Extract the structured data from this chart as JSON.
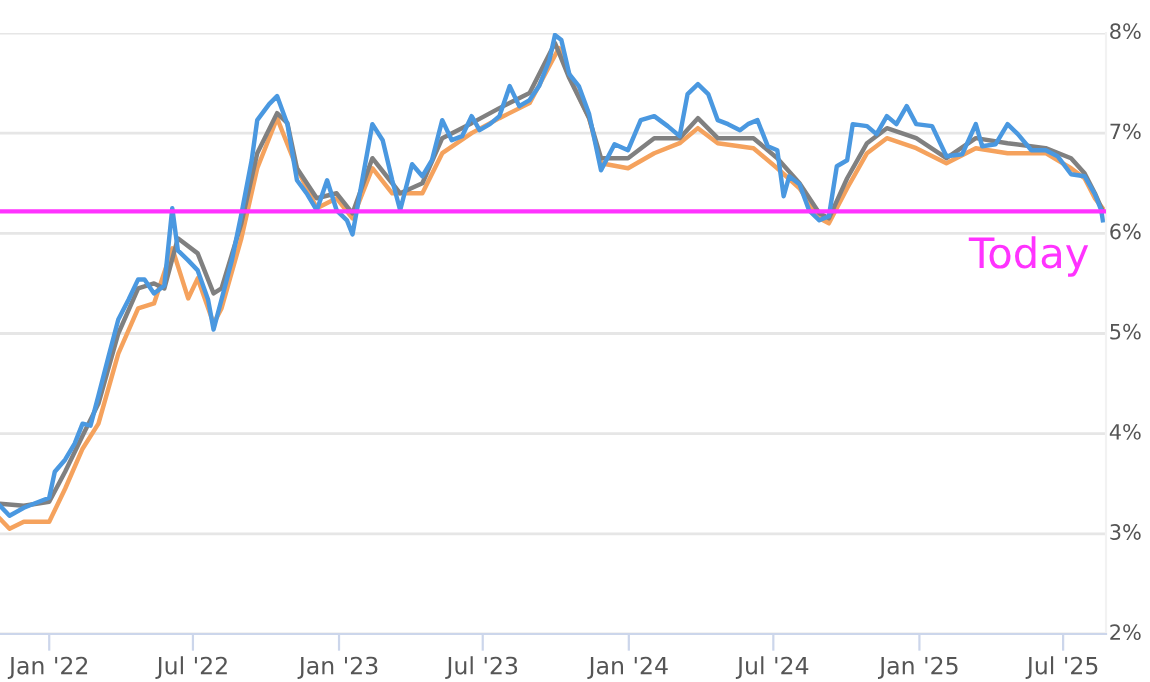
{
  "chart_data": {
    "type": "line",
    "xlim": [
      "2021-10-31",
      "2025-08-24"
    ],
    "xticks": [
      {
        "value": "2022-01-01",
        "label": "Jan '22"
      },
      {
        "value": "2022-07-01",
        "label": "Jul '22"
      },
      {
        "value": "2023-01-01",
        "label": "Jan '23"
      },
      {
        "value": "2023-07-01",
        "label": "Jul '23"
      },
      {
        "value": "2024-01-01",
        "label": "Jan '24"
      },
      {
        "value": "2024-07-01",
        "label": "Jul '24"
      },
      {
        "value": "2025-01-01",
        "label": "Jan '25"
      },
      {
        "value": "2025-07-01",
        "label": "Jul '25"
      }
    ],
    "ylim": [
      2,
      8
    ],
    "yticks": [
      {
        "value": 2,
        "label": "2%"
      },
      {
        "value": 3,
        "label": "3%"
      },
      {
        "value": 4,
        "label": "4%"
      },
      {
        "value": 5,
        "label": "5%"
      },
      {
        "value": 6,
        "label": "6%"
      },
      {
        "value": 7,
        "label": "7%"
      },
      {
        "value": 8,
        "label": "8%"
      }
    ],
    "grid": "y",
    "legend": false,
    "marker": "none",
    "line_style": "solid",
    "ref_lines": [
      {
        "axis": "y",
        "value": 6.22,
        "label": "Today",
        "color": "#ff33ff"
      }
    ],
    "series": [
      {
        "color": "#f5a25d",
        "x": [
          "2021-10-31",
          "2021-11-12",
          "2021-11-30",
          "2022-01-01",
          "2022-01-21",
          "2022-02-12",
          "2022-03-04",
          "2022-03-29",
          "2022-04-23",
          "2022-05-13",
          "2022-06-05",
          "2022-06-25",
          "2022-07-07",
          "2022-07-27",
          "2022-08-06",
          "2022-08-31",
          "2022-09-20",
          "2022-10-15",
          "2022-11-09",
          "2022-12-04",
          "2022-12-29",
          "2023-01-18",
          "2023-02-12",
          "2023-03-09",
          "2023-03-27",
          "2023-04-16",
          "2023-05-11",
          "2023-06-17",
          "2023-07-22",
          "2023-08-29",
          "2023-10-05",
          "2023-10-25",
          "2023-11-12",
          "2023-11-27",
          "2023-12-31",
          "2024-02-02",
          "2024-03-05",
          "2024-03-28",
          "2024-04-22",
          "2024-06-06",
          "2024-07-06",
          "2024-08-03",
          "2024-08-28",
          "2024-09-09",
          "2024-10-02",
          "2024-10-27",
          "2024-11-21",
          "2024-12-28",
          "2025-02-04",
          "2025-03-13",
          "2025-04-22",
          "2025-06-09",
          "2025-07-11",
          "2025-07-28",
          "2025-08-10",
          "2025-08-20"
        ],
        "values": [
          3.15,
          3.05,
          3.12,
          3.12,
          3.45,
          3.85,
          4.1,
          4.8,
          5.25,
          5.3,
          5.85,
          5.35,
          5.55,
          5.1,
          5.25,
          5.95,
          6.65,
          7.15,
          6.65,
          6.25,
          6.35,
          6.15,
          6.65,
          6.4,
          6.4,
          6.4,
          6.8,
          7.0,
          7.15,
          7.3,
          7.85,
          7.45,
          7.15,
          6.7,
          6.65,
          6.8,
          6.9,
          7.05,
          6.9,
          6.85,
          6.65,
          6.45,
          6.15,
          6.1,
          6.45,
          6.8,
          6.95,
          6.85,
          6.7,
          6.85,
          6.8,
          6.8,
          6.65,
          6.55,
          6.35,
          6.25
        ]
      },
      {
        "color": "#808080",
        "x": [
          "2021-10-31",
          "2021-11-30",
          "2022-01-01",
          "2022-01-21",
          "2022-02-12",
          "2022-03-04",
          "2022-03-29",
          "2022-04-23",
          "2022-05-13",
          "2022-05-26",
          "2022-06-12",
          "2022-07-07",
          "2022-07-27",
          "2022-08-06",
          "2022-08-31",
          "2022-09-20",
          "2022-10-15",
          "2022-10-28",
          "2022-11-09",
          "2022-12-04",
          "2022-12-29",
          "2023-01-18",
          "2023-02-12",
          "2023-03-09",
          "2023-03-19",
          "2023-04-16",
          "2023-05-11",
          "2023-06-17",
          "2023-07-22",
          "2023-08-29",
          "2023-09-30",
          "2023-10-18",
          "2023-11-12",
          "2023-11-27",
          "2023-12-31",
          "2024-02-02",
          "2024-03-05",
          "2024-03-28",
          "2024-04-22",
          "2024-06-06",
          "2024-07-06",
          "2024-08-03",
          "2024-08-28",
          "2024-09-09",
          "2024-10-02",
          "2024-10-27",
          "2024-11-21",
          "2024-12-28",
          "2025-02-04",
          "2025-03-13",
          "2025-04-22",
          "2025-06-09",
          "2025-07-11",
          "2025-07-28",
          "2025-08-10",
          "2025-08-20"
        ],
        "values": [
          3.3,
          3.28,
          3.32,
          3.62,
          3.98,
          4.3,
          5.0,
          5.45,
          5.5,
          5.45,
          5.95,
          5.8,
          5.4,
          5.45,
          6.1,
          6.8,
          7.2,
          7.1,
          6.65,
          6.35,
          6.4,
          6.2,
          6.75,
          6.5,
          6.4,
          6.5,
          6.95,
          7.1,
          7.25,
          7.4,
          7.9,
          7.55,
          7.15,
          6.75,
          6.75,
          6.95,
          6.95,
          7.15,
          6.95,
          6.95,
          6.75,
          6.5,
          6.2,
          6.15,
          6.55,
          6.9,
          7.05,
          6.95,
          6.75,
          6.95,
          6.9,
          6.85,
          6.75,
          6.6,
          6.4,
          6.22
        ]
      },
      {
        "color": "#4a98e0",
        "x": [
          "2021-10-31",
          "2021-11-12",
          "2021-11-30",
          "2021-12-19",
          "2022-01-01",
          "2022-01-08",
          "2022-01-21",
          "2022-02-02",
          "2022-02-12",
          "2022-02-22",
          "2022-03-04",
          "2022-03-17",
          "2022-03-29",
          "2022-04-11",
          "2022-04-23",
          "2022-05-01",
          "2022-05-13",
          "2022-05-26",
          "2022-06-05",
          "2022-06-12",
          "2022-06-25",
          "2022-07-07",
          "2022-07-20",
          "2022-07-27",
          "2022-08-06",
          "2022-08-19",
          "2022-08-31",
          "2022-09-13",
          "2022-09-20",
          "2022-10-05",
          "2022-10-15",
          "2022-10-28",
          "2022-11-09",
          "2022-11-22",
          "2022-12-04",
          "2022-12-17",
          "2022-12-29",
          "2023-01-11",
          "2023-01-18",
          "2023-01-28",
          "2023-02-12",
          "2023-02-25",
          "2023-03-09",
          "2023-03-19",
          "2023-04-03",
          "2023-04-16",
          "2023-04-28",
          "2023-05-11",
          "2023-05-23",
          "2023-06-05",
          "2023-06-17",
          "2023-06-27",
          "2023-07-10",
          "2023-07-22",
          "2023-08-04",
          "2023-08-16",
          "2023-08-29",
          "2023-09-10",
          "2023-09-23",
          "2023-09-30",
          "2023-10-08",
          "2023-10-18",
          "2023-10-30",
          "2023-11-12",
          "2023-11-27",
          "2023-12-14",
          "2023-12-31",
          "2024-01-16",
          "2024-02-02",
          "2024-02-19",
          "2024-03-05",
          "2024-03-15",
          "2024-03-28",
          "2024-04-10",
          "2024-04-22",
          "2024-05-05",
          "2024-05-20",
          "2024-05-30",
          "2024-06-11",
          "2024-06-24",
          "2024-07-06",
          "2024-07-14",
          "2024-07-21",
          "2024-08-03",
          "2024-08-15",
          "2024-08-28",
          "2024-09-09",
          "2024-09-19",
          "2024-10-02",
          "2024-10-09",
          "2024-10-27",
          "2024-11-08",
          "2024-11-21",
          "2024-12-03",
          "2024-12-16",
          "2024-12-28",
          "2025-01-17",
          "2025-02-04",
          "2025-02-24",
          "2025-03-13",
          "2025-03-21",
          "2025-04-07",
          "2025-04-22",
          "2025-05-05",
          "2025-05-22",
          "2025-06-09",
          "2025-06-24",
          "2025-07-11",
          "2025-07-28",
          "2025-08-10",
          "2025-08-18",
          "2025-08-20"
        ],
        "values": [
          3.28,
          3.18,
          3.26,
          3.32,
          3.36,
          3.62,
          3.74,
          3.9,
          4.1,
          4.08,
          4.38,
          4.78,
          5.14,
          5.34,
          5.54,
          5.54,
          5.4,
          5.48,
          6.25,
          5.83,
          5.73,
          5.63,
          5.34,
          5.04,
          5.34,
          5.73,
          6.19,
          6.73,
          7.13,
          7.29,
          7.37,
          7.09,
          6.53,
          6.39,
          6.23,
          6.53,
          6.23,
          6.13,
          5.99,
          6.43,
          7.09,
          6.93,
          6.53,
          6.23,
          6.69,
          6.57,
          6.73,
          7.13,
          6.93,
          6.97,
          7.17,
          7.03,
          7.09,
          7.17,
          7.47,
          7.27,
          7.33,
          7.47,
          7.73,
          7.98,
          7.93,
          7.59,
          7.47,
          7.19,
          6.63,
          6.89,
          6.83,
          7.13,
          7.17,
          7.07,
          6.97,
          7.39,
          7.49,
          7.39,
          7.13,
          7.09,
          7.03,
          7.09,
          7.13,
          6.87,
          6.83,
          6.37,
          6.57,
          6.49,
          6.23,
          6.13,
          6.17,
          6.67,
          6.73,
          7.09,
          7.07,
          6.99,
          7.17,
          7.09,
          7.27,
          7.09,
          7.07,
          6.77,
          6.79,
          7.09,
          6.87,
          6.89,
          7.09,
          6.99,
          6.83,
          6.83,
          6.77,
          6.59,
          6.57,
          6.39,
          6.23,
          6.13
        ]
      }
    ]
  }
}
